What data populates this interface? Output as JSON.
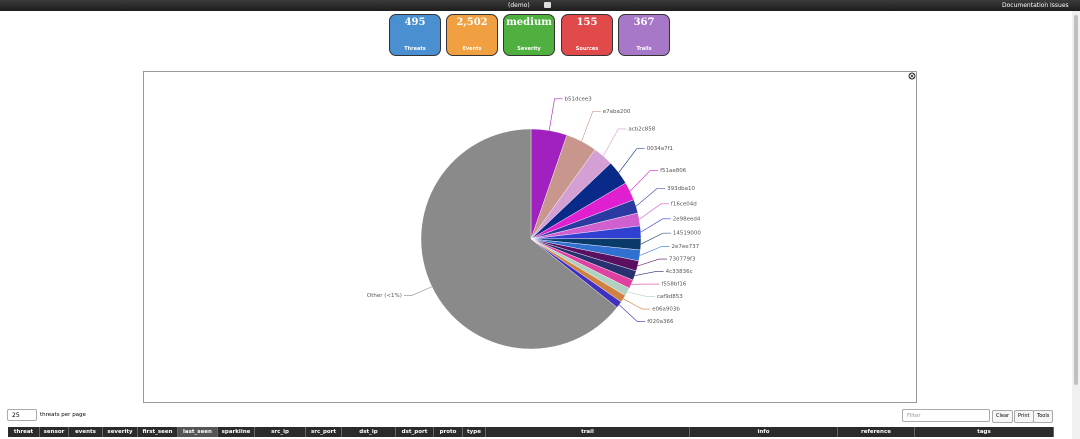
{
  "header": {
    "title": "(demo)",
    "links": [
      "Documentation",
      "Issues"
    ]
  },
  "tiles": [
    {
      "value": "495",
      "label": "Threats",
      "color": "#4a90d0"
    },
    {
      "value": "2,502",
      "label": "Events",
      "color": "#f0a040"
    },
    {
      "value": "medium",
      "label": "Severity",
      "color": "#4fb040"
    },
    {
      "value": "155",
      "label": "Sources",
      "color": "#e04a4a"
    },
    {
      "value": "367",
      "label": "Trails",
      "color": "#a878c8"
    }
  ],
  "chart_data": {
    "type": "pie",
    "categories": [
      "b51dcee3",
      "e7aba200",
      "acb2c858",
      "0034a7f1",
      "f51ae806",
      "393dba10",
      "f16ce04d",
      "2e98eed4",
      "14519000",
      "2e7ee737",
      "730779f3",
      "4c33836c",
      "f558bf16",
      "caf9d853",
      "e06a903b",
      "f020a366",
      "Other (<1%)"
    ],
    "values": [
      5.3,
      4.6,
      3.0,
      3.6,
      2.7,
      2.0,
      1.9,
      1.8,
      1.7,
      1.6,
      1.5,
      1.4,
      1.3,
      1.2,
      1.1,
      1.0,
      64.3
    ],
    "colors": [
      "#a020c0",
      "#c8968c",
      "#d4a0d4",
      "#0a2a8a",
      "#e020d0",
      "#2a3aa0",
      "#d060d0",
      "#3040d0",
      "#0a3a6a",
      "#3070d0",
      "#5a1060",
      "#283070",
      "#e040a0",
      "#b0d0c0",
      "#d08040",
      "#4030c0",
      "#8a8a8a"
    ]
  },
  "controls": {
    "page_size": "25",
    "page_size_label": "threats per page",
    "filter_placeholder": "Filter",
    "buttons": [
      "Clear",
      "Print",
      "Tools"
    ]
  },
  "table": {
    "columns": [
      "threat",
      "sensor",
      "events",
      "severity",
      "first_seen",
      "last_seen",
      "sparkline",
      "src_ip",
      "src_port",
      "dst_ip",
      "dst_port",
      "proto",
      "type",
      "trail",
      "info",
      "reference",
      "tags"
    ]
  }
}
